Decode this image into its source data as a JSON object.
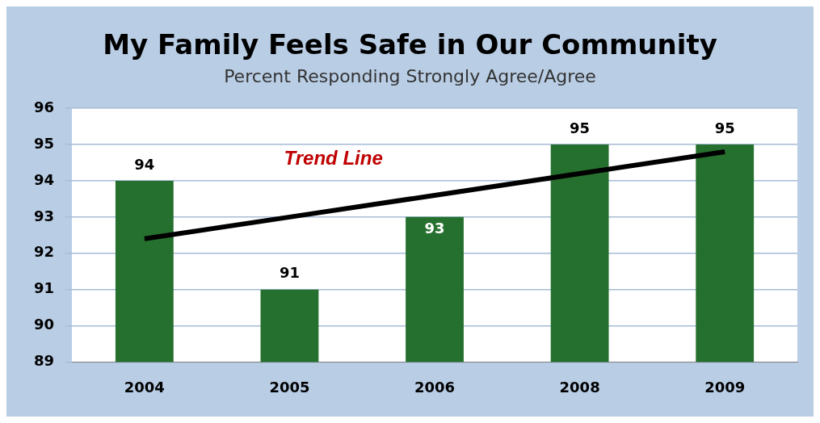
{
  "chart_data": {
    "type": "bar",
    "title": "My Family Feels Safe in Our Community",
    "subtitle": "Percent Responding Strongly Agree/Agree",
    "categories": [
      "2004",
      "2005",
      "2006",
      "2008",
      "2009"
    ],
    "series": [
      {
        "color": "#26702f",
        "values": [
          94,
          91,
          93,
          95,
          95
        ],
        "value_labels": [
          "94",
          "91",
          "93",
          "95",
          "95"
        ]
      },
      {
        "type": "line",
        "color": "#000000",
        "values": [
          92.4,
          93.0,
          93.6,
          94.2,
          94.8
        ]
      }
    ],
    "ylim": [
      89,
      96
    ],
    "yticks": [
      89,
      90,
      91,
      92,
      93,
      94,
      95,
      96
    ],
    "grid": "y",
    "legend": false,
    "annotations": [
      "Trend Line"
    ]
  }
}
